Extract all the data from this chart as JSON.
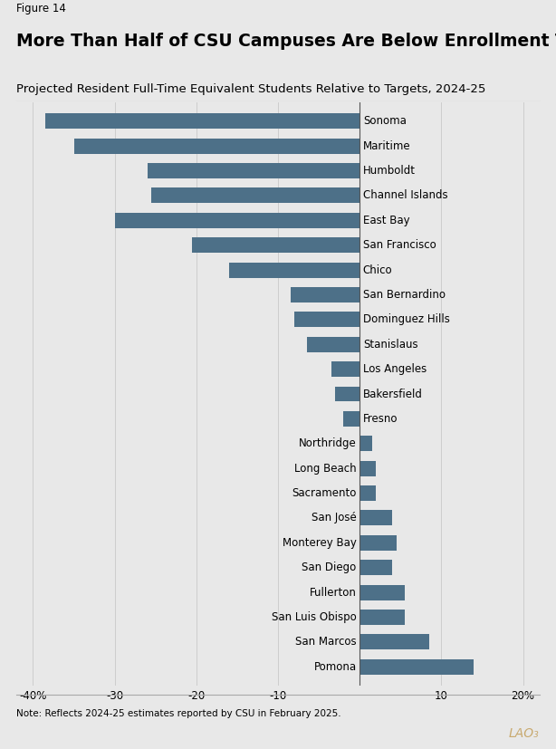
{
  "figure_label": "Figure 14",
  "title": "More Than Half of CSU Campuses Are Below Enrollment Targets",
  "subtitle": "Projected Resident Full-Time Equivalent Students Relative to Targets, 2024-25",
  "note": "Note: Reflects 2024-25 estimates reported by CSU in February 2025.",
  "watermark": "LAO₃",
  "categories": [
    "Sonoma",
    "Maritime",
    "Humboldt",
    "Channel Islands",
    "East Bay",
    "San Francisco",
    "Chico",
    "San Bernardino",
    "Dominguez Hills",
    "Stanislaus",
    "Los Angeles",
    "Bakersfield",
    "Fresno",
    "Northridge",
    "Long Beach",
    "Sacramento",
    "San José",
    "Monterey Bay",
    "San Diego",
    "Fullerton",
    "San Luis Obispo",
    "San Marcos",
    "Pomona"
  ],
  "values": [
    -38.5,
    -35.0,
    -26.0,
    -25.5,
    -30.0,
    -20.5,
    -16.0,
    -8.5,
    -8.0,
    -6.5,
    -3.5,
    -3.0,
    -2.0,
    1.5,
    2.0,
    2.0,
    4.0,
    4.5,
    4.0,
    5.5,
    5.5,
    8.5,
    14.0
  ],
  "bar_color": "#4d7088",
  "background_color": "#e8e8e8",
  "xlim": [
    -42,
    22
  ],
  "xticks": [
    -40,
    -30,
    -20,
    -10,
    0,
    10,
    20
  ],
  "xticklabels": [
    "-40%",
    "-30",
    "-20",
    "-10",
    "",
    "10",
    "20%"
  ],
  "title_fontsize": 13.5,
  "subtitle_fontsize": 9.5,
  "label_fontsize": 8.5,
  "tick_fontsize": 8.5,
  "figure_label_fontsize": 8.5
}
